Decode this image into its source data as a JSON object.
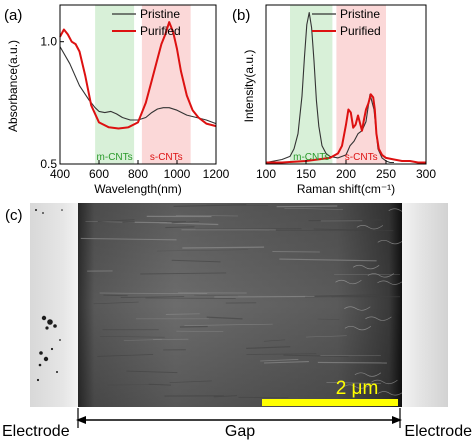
{
  "panels": {
    "a": {
      "label": "(a)"
    },
    "b": {
      "label": "(b)"
    },
    "c": {
      "label": "(c)"
    }
  },
  "chart_data": [
    {
      "panel": "(a)",
      "type": "line",
      "xlabel": "Wavelength(nm)",
      "ylabel": "Absorbance(a.u.)",
      "xlim": [
        400,
        1200
      ],
      "ylim": [
        0.5,
        1.15
      ],
      "x_ticks": [
        400,
        600,
        800,
        1000,
        1200
      ],
      "y_ticks": [
        0.5,
        1.0
      ],
      "y_tick_labels": [
        "0.5",
        "1.0"
      ],
      "legend_position": "top-right",
      "bands": [
        {
          "label": "m-CNTs",
          "range": [
            580,
            780
          ],
          "color": "#d8f0d8"
        },
        {
          "label": "s-CNTs",
          "range": [
            820,
            1070
          ],
          "color": "#fbd8d8"
        }
      ],
      "series": [
        {
          "name": "Pristine",
          "color": "#333333",
          "x": [
            400,
            450,
            500,
            550,
            580,
            600,
            630,
            660,
            690,
            720,
            760,
            800,
            840,
            870,
            900,
            930,
            960,
            1000,
            1050,
            1100,
            1150,
            1200
          ],
          "y": [
            0.98,
            0.91,
            0.82,
            0.76,
            0.73,
            0.715,
            0.71,
            0.715,
            0.705,
            0.69,
            0.68,
            0.68,
            0.69,
            0.71,
            0.725,
            0.73,
            0.73,
            0.72,
            0.7,
            0.69,
            0.68,
            0.665
          ]
        },
        {
          "name": "Purified",
          "color": "#dd1111",
          "x": [
            400,
            420,
            440,
            460,
            480,
            500,
            530,
            560,
            600,
            650,
            700,
            750,
            800,
            840,
            870,
            900,
            920,
            940,
            960,
            980,
            1000,
            1020,
            1050,
            1080,
            1110,
            1150,
            1200
          ],
          "y": [
            1.02,
            1.05,
            1.03,
            1.0,
            0.99,
            0.96,
            0.86,
            0.74,
            0.67,
            0.65,
            0.645,
            0.65,
            0.67,
            0.75,
            0.84,
            0.93,
            0.99,
            1.03,
            1.08,
            1.04,
            0.97,
            0.88,
            0.78,
            0.72,
            0.69,
            0.665,
            0.655
          ]
        }
      ]
    },
    {
      "panel": "(b)",
      "type": "line",
      "xlabel": "Raman shift(cm⁻¹)",
      "ylabel": "Intensity(a.u.)",
      "xlim": [
        100,
        300
      ],
      "ylim": [
        0,
        1.05
      ],
      "x_ticks": [
        100,
        150,
        200,
        250,
        300
      ],
      "legend_position": "top-right",
      "bands": [
        {
          "label": "m-CNTs",
          "range": [
            130,
            183
          ],
          "color": "#d8f0d8"
        },
        {
          "label": "s-CNTs",
          "range": [
            188,
            250
          ],
          "color": "#fbd8d8"
        }
      ],
      "series": [
        {
          "name": "Pristine",
          "color": "#333333",
          "x": [
            100,
            110,
            120,
            130,
            135,
            140,
            145,
            148,
            151,
            154,
            157,
            160,
            163,
            166,
            170,
            175,
            180,
            190,
            200,
            205,
            210,
            215,
            220,
            225,
            230,
            235,
            240,
            245,
            250,
            255,
            260
          ],
          "y": [
            0.01,
            0.02,
            0.03,
            0.05,
            0.1,
            0.2,
            0.45,
            0.7,
            0.92,
            1.0,
            0.9,
            0.68,
            0.42,
            0.25,
            0.12,
            0.07,
            0.05,
            0.04,
            0.06,
            0.12,
            0.15,
            0.2,
            0.22,
            0.28,
            0.46,
            0.36,
            0.1,
            0.04,
            0.02,
            0.01,
            0.01
          ]
        },
        {
          "name": "Purified",
          "color": "#dd1111",
          "x": [
            100,
            120,
            150,
            180,
            190,
            195,
            200,
            203,
            206,
            209,
            212,
            215,
            218,
            220,
            222,
            225,
            228,
            231,
            234,
            236,
            238,
            241,
            245,
            250,
            260,
            270,
            280,
            290,
            300
          ],
          "y": [
            0.01,
            0.01,
            0.02,
            0.04,
            0.07,
            0.12,
            0.26,
            0.36,
            0.34,
            0.24,
            0.26,
            0.32,
            0.26,
            0.22,
            0.28,
            0.36,
            0.4,
            0.46,
            0.44,
            0.36,
            0.2,
            0.1,
            0.06,
            0.04,
            0.03,
            0.02,
            0.02,
            0.01,
            0.01
          ]
        }
      ]
    }
  ],
  "sem": {
    "scale_bar_label": "2 μm",
    "scale_bar_color": "#ffff00",
    "electrode_left_label": "Electrode",
    "electrode_right_label": "Electrode",
    "gap_label": "Gap"
  }
}
